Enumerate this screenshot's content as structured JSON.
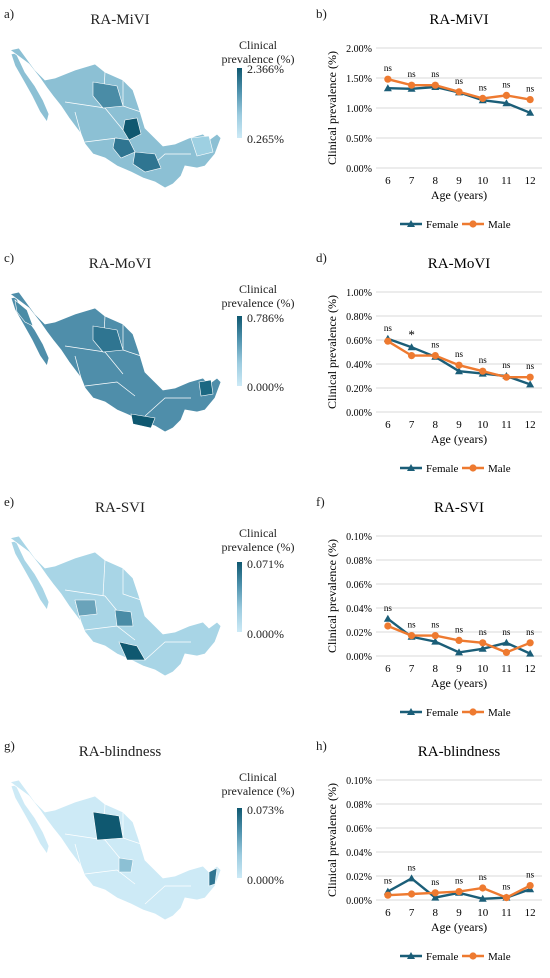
{
  "panels": [
    {
      "map_letter": "a)",
      "chart_letter": "b)",
      "title": "RA-MiVI",
      "legend_title_1": "Clinical",
      "legend_title_2": "prevalence (%)",
      "legend_max": "2.366%",
      "legend_min": "0.265%"
    },
    {
      "map_letter": "c)",
      "chart_letter": "d)",
      "title": "RA-MoVI",
      "legend_title_1": "Clinical",
      "legend_title_2": "prevalence (%)",
      "legend_max": "0.786%",
      "legend_min": "0.000%"
    },
    {
      "map_letter": "e)",
      "chart_letter": "f)",
      "title": "RA-SVI",
      "legend_title_1": "Clinical",
      "legend_title_2": "prevalence (%)",
      "legend_max": "0.071%",
      "legend_min": "0.000%"
    },
    {
      "map_letter": "g)",
      "chart_letter": "h)",
      "title": "RA-blindness",
      "legend_title_1": "Clinical",
      "legend_title_2": "prevalence (%)",
      "legend_max": "0.073%",
      "legend_min": "0.000%"
    }
  ],
  "colors": {
    "female": "#1b5e78",
    "male": "#ee7a30",
    "grid": "#d9d9d9",
    "map_dark": "#0f5870",
    "map_light": "#cdeaf6"
  },
  "chart_data": [
    {
      "type": "line",
      "title": "RA-MiVI",
      "xlabel": "Age (years)",
      "ylabel": "Clinical prevalence (%)",
      "categories": [
        "6",
        "7",
        "8",
        "9",
        "10",
        "11",
        "12"
      ],
      "ylim": [
        0,
        2.0
      ],
      "yticks": [
        "0.00%",
        "0.50%",
        "1.00%",
        "1.50%",
        "2.00%"
      ],
      "series": [
        {
          "name": "Female",
          "values": [
            1.33,
            1.32,
            1.35,
            1.26,
            1.13,
            1.08,
            0.92
          ]
        },
        {
          "name": "Male",
          "values": [
            1.48,
            1.38,
            1.38,
            1.27,
            1.16,
            1.21,
            1.14
          ]
        }
      ],
      "annotations": [
        "ns",
        "ns",
        "ns",
        "ns",
        "ns",
        "ns",
        "ns"
      ],
      "legend": "bottom"
    },
    {
      "type": "line",
      "title": "RA-MoVI",
      "xlabel": "Age (years)",
      "ylabel": "Clinical prevalence (%)",
      "categories": [
        "6",
        "7",
        "8",
        "9",
        "10",
        "11",
        "12"
      ],
      "ylim": [
        0,
        1.0
      ],
      "yticks": [
        "0.00%",
        "0.20%",
        "0.40%",
        "0.60%",
        "0.80%",
        "1.00%"
      ],
      "series": [
        {
          "name": "Female",
          "values": [
            0.61,
            0.54,
            0.46,
            0.34,
            0.32,
            0.3,
            0.23
          ]
        },
        {
          "name": "Male",
          "values": [
            0.59,
            0.47,
            0.47,
            0.39,
            0.34,
            0.29,
            0.29
          ]
        }
      ],
      "annotations": [
        "ns",
        "*",
        "ns",
        "ns",
        "ns",
        "ns",
        "ns"
      ],
      "legend": "bottom"
    },
    {
      "type": "line",
      "title": "RA-SVI",
      "xlabel": "Age (years)",
      "ylabel": "Clinical prevalence (%)",
      "categories": [
        "6",
        "7",
        "8",
        "9",
        "10",
        "11",
        "12"
      ],
      "ylim": [
        0,
        0.1
      ],
      "yticks": [
        "0.00%",
        "0.02%",
        "0.04%",
        "0.06%",
        "0.08%",
        "0.10%"
      ],
      "series": [
        {
          "name": "Female",
          "values": [
            0.031,
            0.016,
            0.012,
            0.003,
            0.006,
            0.011,
            0.002
          ]
        },
        {
          "name": "Male",
          "values": [
            0.025,
            0.017,
            0.017,
            0.013,
            0.011,
            0.003,
            0.011
          ]
        }
      ],
      "annotations": [
        "ns",
        "ns",
        "ns",
        "ns",
        "ns",
        "ns",
        "ns"
      ],
      "legend": "bottom"
    },
    {
      "type": "line",
      "title": "RA-blindness",
      "xlabel": "Age (years)",
      "ylabel": "Clinical prevalence (%)",
      "categories": [
        "6",
        "7",
        "8",
        "9",
        "10",
        "11",
        "12"
      ],
      "ylim": [
        0,
        0.1
      ],
      "yticks": [
        "0.00%",
        "0.02%",
        "0.04%",
        "0.06%",
        "0.08%",
        "0.10%"
      ],
      "series": [
        {
          "name": "Female",
          "values": [
            0.007,
            0.018,
            0.002,
            0.006,
            0.001,
            0.002,
            0.009
          ]
        },
        {
          "name": "Male",
          "values": [
            0.004,
            0.005,
            0.006,
            0.007,
            0.01,
            0.002,
            0.012
          ]
        }
      ],
      "annotations": [
        "ns",
        "ns",
        "ns",
        "ns",
        "ns",
        "ns",
        "ns"
      ],
      "legend": "bottom"
    }
  ]
}
